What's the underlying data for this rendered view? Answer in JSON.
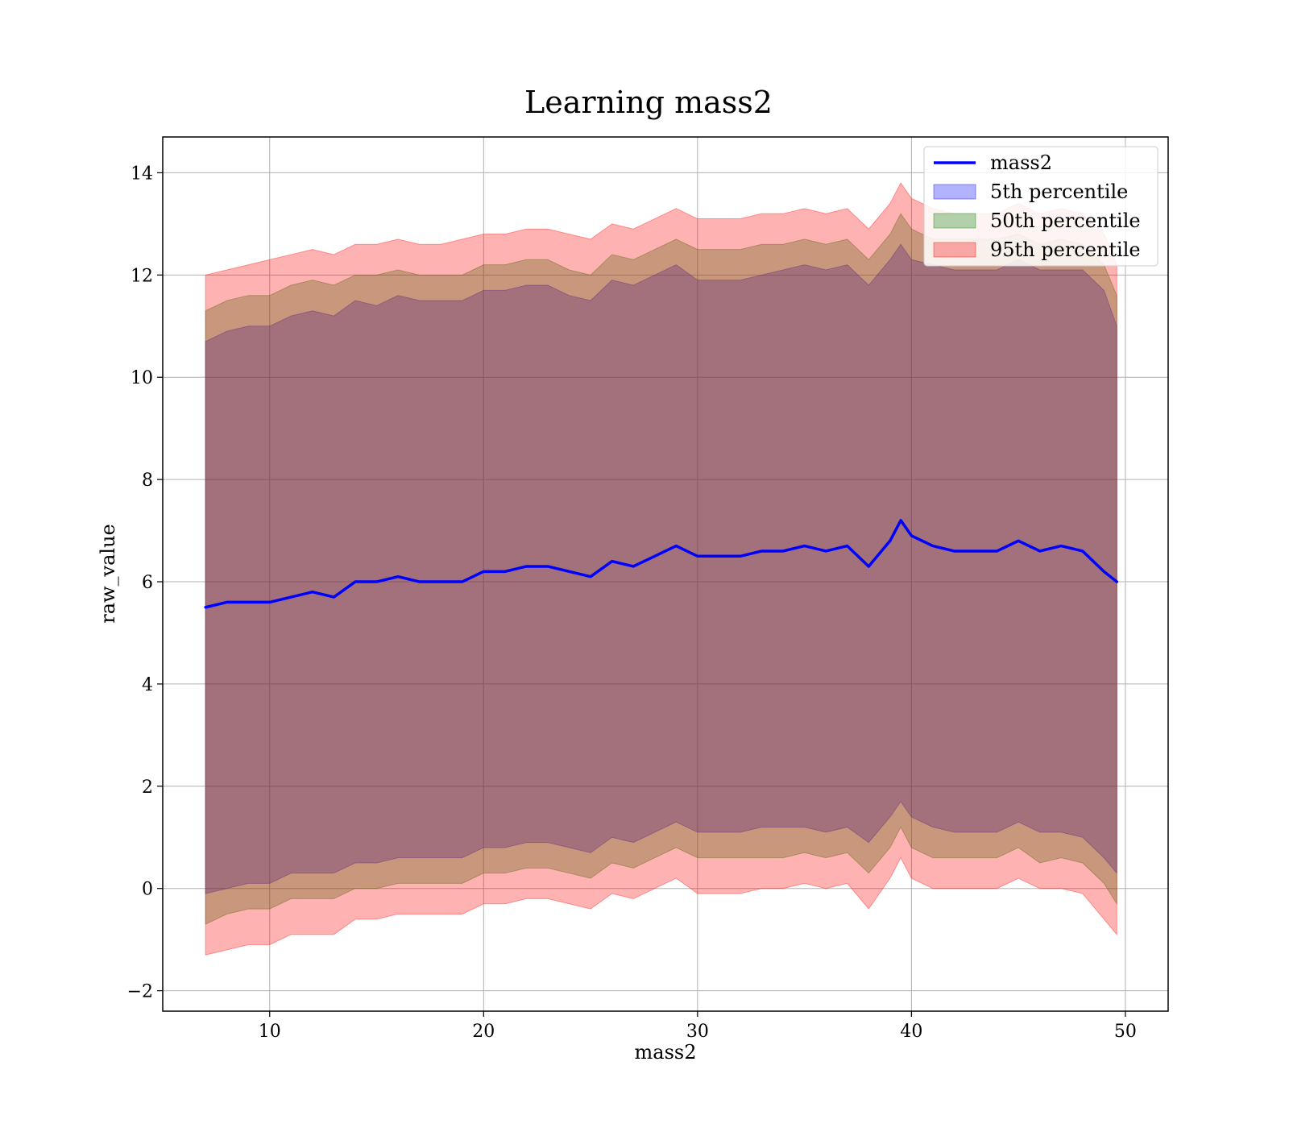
{
  "chart_data": {
    "type": "area",
    "title": "Learning mass2",
    "xlabel": "mass2",
    "ylabel": "raw_value",
    "xlim": [
      5,
      52
    ],
    "ylim": [
      -2.4,
      14.7
    ],
    "xticks": [
      10,
      20,
      30,
      40,
      50
    ],
    "yticks": [
      -2,
      0,
      2,
      4,
      6,
      8,
      10,
      12,
      14
    ],
    "ytick_labels": [
      "−2",
      "0",
      "2",
      "4",
      "6",
      "8",
      "10",
      "12",
      "14"
    ],
    "grid": true,
    "legend_position": "top-right",
    "x": [
      7,
      8,
      9,
      10,
      11,
      12,
      13,
      14,
      15,
      16,
      17,
      18,
      19,
      20,
      21,
      22,
      23,
      24,
      25,
      26,
      27,
      28,
      29,
      30,
      31,
      32,
      33,
      34,
      35,
      36,
      37,
      38,
      39,
      39.5,
      40,
      41,
      42,
      43,
      44,
      45,
      46,
      47,
      48,
      49,
      49.6
    ],
    "series": [
      {
        "name": "mass2",
        "kind": "line",
        "color": "#0000ff",
        "values": [
          5.5,
          5.6,
          5.6,
          5.6,
          5.7,
          5.8,
          5.7,
          6.0,
          6.0,
          6.1,
          6.0,
          6.0,
          6.0,
          6.2,
          6.2,
          6.3,
          6.3,
          6.2,
          6.1,
          6.4,
          6.3,
          6.5,
          6.7,
          6.5,
          6.5,
          6.5,
          6.6,
          6.6,
          6.7,
          6.6,
          6.7,
          6.3,
          6.8,
          7.2,
          6.9,
          6.7,
          6.6,
          6.6,
          6.6,
          6.8,
          6.6,
          6.7,
          6.6,
          6.2,
          6.0
        ]
      },
      {
        "name": "5th percentile",
        "kind": "band",
        "color": "#0000ff",
        "lower": [
          -0.1,
          0.0,
          0.1,
          0.1,
          0.3,
          0.3,
          0.3,
          0.5,
          0.5,
          0.6,
          0.6,
          0.6,
          0.6,
          0.8,
          0.8,
          0.9,
          0.9,
          0.8,
          0.7,
          1.0,
          0.9,
          1.1,
          1.3,
          1.1,
          1.1,
          1.1,
          1.2,
          1.2,
          1.2,
          1.1,
          1.2,
          0.9,
          1.4,
          1.7,
          1.4,
          1.2,
          1.1,
          1.1,
          1.1,
          1.3,
          1.1,
          1.1,
          1.0,
          0.6,
          0.3
        ],
        "upper": [
          10.7,
          10.9,
          11.0,
          11.0,
          11.2,
          11.3,
          11.2,
          11.5,
          11.4,
          11.6,
          11.5,
          11.5,
          11.5,
          11.7,
          11.7,
          11.8,
          11.8,
          11.6,
          11.5,
          11.9,
          11.8,
          12.0,
          12.2,
          11.9,
          11.9,
          11.9,
          12.0,
          12.1,
          12.2,
          12.1,
          12.2,
          11.8,
          12.3,
          12.6,
          12.3,
          12.2,
          12.1,
          12.1,
          12.1,
          12.3,
          12.1,
          12.1,
          12.1,
          11.7,
          11.0
        ]
      },
      {
        "name": "50th percentile",
        "kind": "band",
        "color": "#008000",
        "lower": [
          -0.7,
          -0.5,
          -0.4,
          -0.4,
          -0.2,
          -0.2,
          -0.2,
          0.0,
          0.0,
          0.1,
          0.1,
          0.1,
          0.1,
          0.3,
          0.3,
          0.4,
          0.4,
          0.3,
          0.2,
          0.5,
          0.4,
          0.6,
          0.8,
          0.6,
          0.6,
          0.6,
          0.6,
          0.6,
          0.7,
          0.6,
          0.7,
          0.3,
          0.8,
          1.2,
          0.8,
          0.6,
          0.6,
          0.6,
          0.6,
          0.8,
          0.5,
          0.6,
          0.5,
          0.1,
          -0.3
        ],
        "upper": [
          11.3,
          11.5,
          11.6,
          11.6,
          11.8,
          11.9,
          11.8,
          12.0,
          12.0,
          12.1,
          12.0,
          12.0,
          12.0,
          12.2,
          12.2,
          12.3,
          12.3,
          12.1,
          12.0,
          12.4,
          12.3,
          12.5,
          12.7,
          12.5,
          12.5,
          12.5,
          12.6,
          12.6,
          12.7,
          12.6,
          12.7,
          12.3,
          12.8,
          13.2,
          12.9,
          12.7,
          12.7,
          12.7,
          12.7,
          12.8,
          12.6,
          12.7,
          12.6,
          12.2,
          11.6
        ]
      },
      {
        "name": "95th percentile",
        "kind": "band",
        "color": "#ff0000",
        "lower": [
          -1.3,
          -1.2,
          -1.1,
          -1.1,
          -0.9,
          -0.9,
          -0.9,
          -0.6,
          -0.6,
          -0.5,
          -0.5,
          -0.5,
          -0.5,
          -0.3,
          -0.3,
          -0.2,
          -0.2,
          -0.3,
          -0.4,
          -0.1,
          -0.2,
          0.0,
          0.2,
          -0.1,
          -0.1,
          -0.1,
          0.0,
          0.0,
          0.1,
          0.0,
          0.1,
          -0.4,
          0.2,
          0.6,
          0.2,
          0.0,
          0.0,
          0.0,
          0.0,
          0.2,
          0.0,
          0.0,
          -0.1,
          -0.6,
          -0.9
        ],
        "upper": [
          12.0,
          12.1,
          12.2,
          12.3,
          12.4,
          12.5,
          12.4,
          12.6,
          12.6,
          12.7,
          12.6,
          12.6,
          12.7,
          12.8,
          12.8,
          12.9,
          12.9,
          12.8,
          12.7,
          13.0,
          12.9,
          13.1,
          13.3,
          13.1,
          13.1,
          13.1,
          13.2,
          13.2,
          13.3,
          13.2,
          13.3,
          12.9,
          13.4,
          13.8,
          13.5,
          13.3,
          13.2,
          13.2,
          13.2,
          13.4,
          13.2,
          13.3,
          13.2,
          12.8,
          12.2
        ]
      }
    ]
  }
}
